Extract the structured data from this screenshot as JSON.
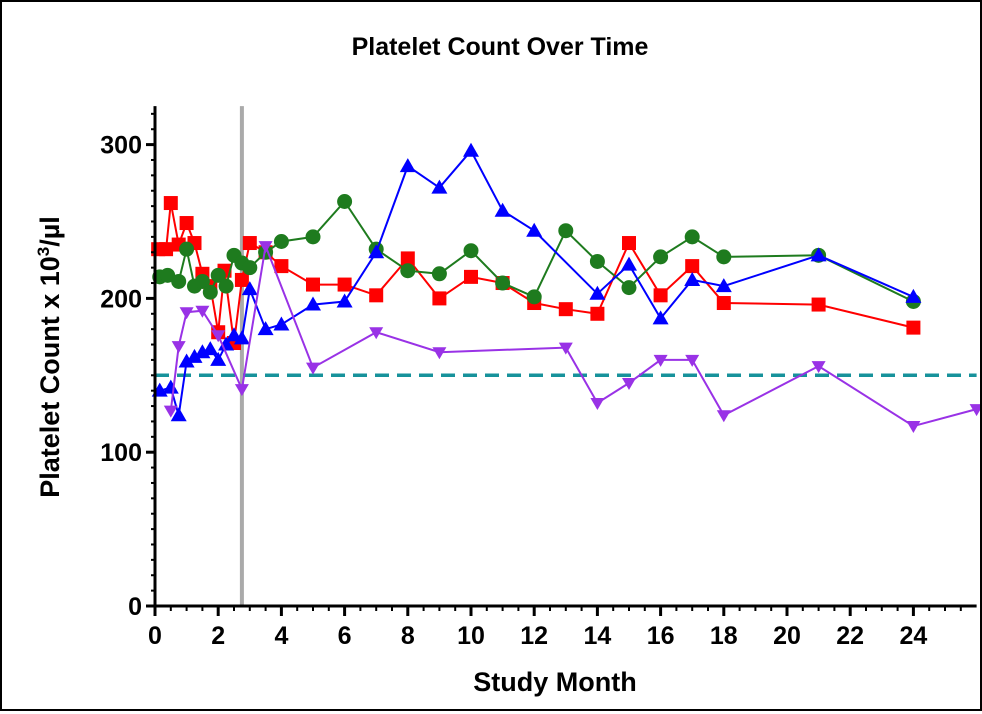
{
  "chart_data": {
    "type": "line",
    "title": "Platelet Count Over Time",
    "xlabel": "Study Month",
    "ylabel": "Platelet Count x 10³/µl",
    "ylabel_main": "Platelet Count x 10",
    "ylabel_sup": "3",
    "ylabel_unit": "/µl",
    "xlim": [
      0,
      26
    ],
    "ylim": [
      0,
      325
    ],
    "xticks": [
      0,
      2,
      4,
      6,
      8,
      10,
      12,
      14,
      16,
      18,
      20,
      22,
      24
    ],
    "xtick_labels": [
      "0",
      "2",
      "4",
      "6",
      "8",
      "10",
      "12",
      "14",
      "16",
      "18",
      "20",
      "22",
      "24"
    ],
    "yticks": [
      0,
      100,
      200,
      300
    ],
    "ytick_labels": [
      "0",
      "100",
      "200",
      "300"
    ],
    "legend": "none",
    "grid": false,
    "reference_line": {
      "y": 150,
      "style": "dashed",
      "color": "#17929b"
    },
    "vertical_marker": {
      "x": 2.75,
      "color": "#aaaaaa"
    },
    "annotation": {
      "text": "*",
      "x": 26,
      "y": 137
    },
    "series": [
      {
        "marker": "square",
        "color": "#ff0000",
        "points": [
          [
            0.1,
            232
          ],
          [
            0.35,
            232
          ],
          [
            0.5,
            262
          ],
          [
            0.75,
            235
          ],
          [
            1,
            249
          ],
          [
            1.25,
            236
          ],
          [
            1.5,
            216
          ],
          [
            1.75,
            208
          ],
          [
            2,
            178
          ],
          [
            2.2,
            218
          ],
          [
            2.5,
            171
          ],
          [
            2.75,
            212
          ],
          [
            3,
            236
          ],
          [
            3.5,
            230
          ],
          [
            4,
            221
          ],
          [
            5,
            209
          ],
          [
            6,
            209
          ],
          [
            7,
            202
          ],
          [
            8,
            226
          ],
          [
            9,
            200
          ],
          [
            10,
            214
          ],
          [
            11,
            210
          ],
          [
            12,
            197
          ],
          [
            13,
            193
          ],
          [
            14,
            190
          ],
          [
            15,
            236
          ],
          [
            16,
            202
          ],
          [
            17,
            221
          ],
          [
            18,
            197
          ],
          [
            21,
            196
          ],
          [
            24,
            181
          ]
        ]
      },
      {
        "marker": "circle",
        "color": "#1e7b1e",
        "points": [
          [
            0.15,
            214
          ],
          [
            0.4,
            215
          ],
          [
            0.75,
            211
          ],
          [
            1,
            232
          ],
          [
            1.25,
            208
          ],
          [
            1.5,
            211
          ],
          [
            1.75,
            204
          ],
          [
            2,
            215
          ],
          [
            2.25,
            208
          ],
          [
            2.5,
            228
          ],
          [
            2.75,
            223
          ],
          [
            3,
            220
          ],
          [
            3.5,
            230
          ],
          [
            4,
            237
          ],
          [
            5,
            240
          ],
          [
            6,
            263
          ],
          [
            7,
            232
          ],
          [
            8,
            218
          ],
          [
            9,
            216
          ],
          [
            10,
            231
          ],
          [
            11,
            210
          ],
          [
            12,
            201
          ],
          [
            13,
            244
          ],
          [
            14,
            224
          ],
          [
            15,
            207
          ],
          [
            16,
            227
          ],
          [
            17,
            240
          ],
          [
            18,
            227
          ],
          [
            21,
            228
          ],
          [
            24,
            198
          ]
        ]
      },
      {
        "marker": "triangle-up",
        "color": "#0000ff",
        "points": [
          [
            0.15,
            140
          ],
          [
            0.5,
            142
          ],
          [
            0.75,
            124
          ],
          [
            1,
            159
          ],
          [
            1.25,
            162
          ],
          [
            1.5,
            165
          ],
          [
            1.75,
            167
          ],
          [
            2,
            160
          ],
          [
            2.25,
            170
          ],
          [
            2.5,
            176
          ],
          [
            2.75,
            174
          ],
          [
            3,
            206
          ],
          [
            3.5,
            180
          ],
          [
            4,
            183
          ],
          [
            5,
            196
          ],
          [
            6,
            198
          ],
          [
            7,
            230
          ],
          [
            8,
            286
          ],
          [
            9,
            272
          ],
          [
            10,
            296
          ],
          [
            11,
            257
          ],
          [
            12,
            244
          ],
          [
            14,
            203
          ],
          [
            15,
            222
          ],
          [
            16,
            187
          ],
          [
            17,
            212
          ],
          [
            18,
            208
          ],
          [
            21,
            228
          ],
          [
            24,
            201
          ]
        ]
      },
      {
        "marker": "triangle-down",
        "color": "#9932e6",
        "points": [
          [
            0.5,
            127
          ],
          [
            0.75,
            169
          ],
          [
            1,
            191
          ],
          [
            1.5,
            192
          ],
          [
            2,
            176
          ],
          [
            2.75,
            141
          ],
          [
            3.5,
            234
          ],
          [
            5,
            155
          ],
          [
            7,
            178
          ],
          [
            9,
            165
          ],
          [
            13,
            168
          ],
          [
            14,
            132
          ],
          [
            15,
            145
          ],
          [
            16,
            160
          ],
          [
            17,
            160
          ],
          [
            18,
            124
          ],
          [
            21,
            156
          ],
          [
            24,
            117
          ],
          [
            26,
            128
          ]
        ]
      }
    ]
  }
}
